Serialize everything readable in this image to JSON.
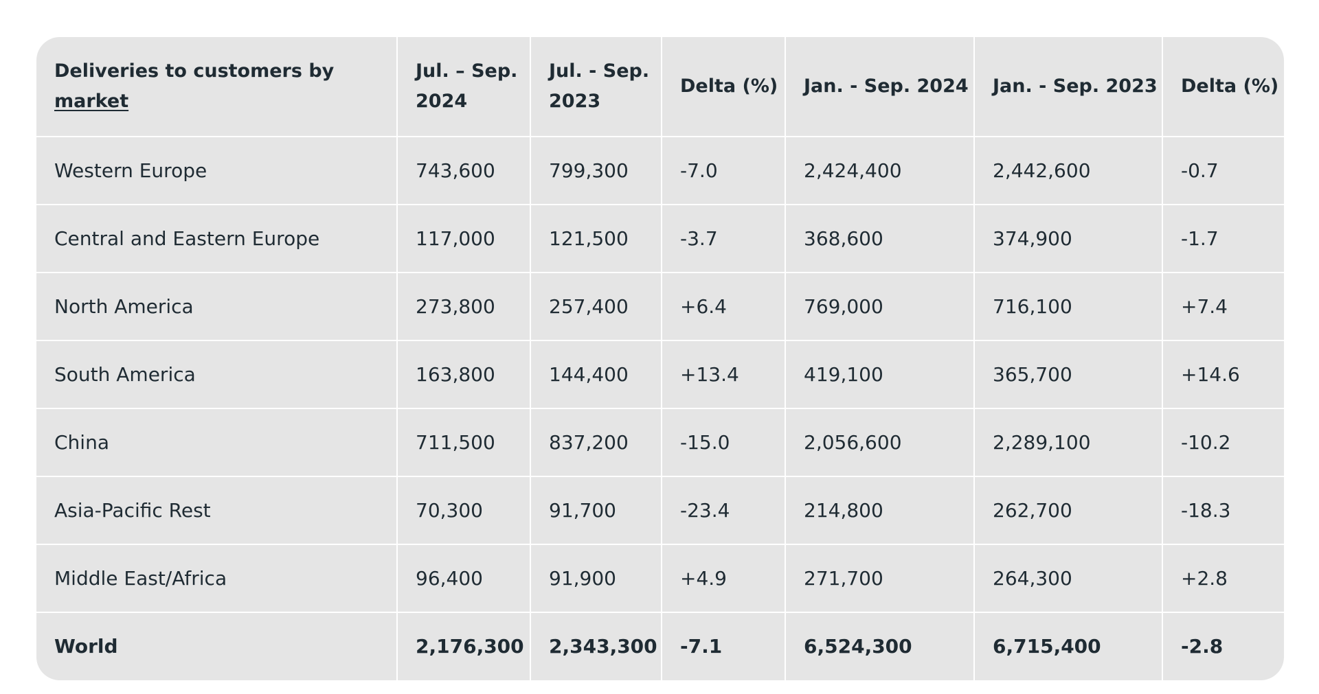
{
  "table": {
    "header": {
      "market_prefix": "Deliveries to customers by",
      "market_link": "market",
      "columns": [
        "Jul. – Sep. 2024",
        "Jul. - Sep. 2023",
        "Delta (%)",
        "Jan. - Sep. 2024",
        "Jan. - Sep. 2023",
        "Delta (%)"
      ]
    },
    "rows": [
      {
        "market": "Western Europe",
        "values": [
          "743,600",
          "799,300",
          "-7.0",
          "2,424,400",
          "2,442,600",
          "-0.7"
        ]
      },
      {
        "market": "Central and Eastern Europe",
        "values": [
          "117,000",
          "121,500",
          "-3.7",
          "368,600",
          "374,900",
          "-1.7"
        ]
      },
      {
        "market": "North America",
        "values": [
          "273,800",
          "257,400",
          "+6.4",
          "769,000",
          "716,100",
          "+7.4"
        ]
      },
      {
        "market": "South America",
        "values": [
          "163,800",
          "144,400",
          "+13.4",
          "419,100",
          "365,700",
          "+14.6"
        ]
      },
      {
        "market": "China",
        "values": [
          "711,500",
          "837,200",
          "-15.0",
          "2,056,600",
          "2,289,100",
          "-10.2"
        ]
      },
      {
        "market": "Asia-Pacific Rest",
        "values": [
          "70,300",
          "91,700",
          "-23.4",
          "214,800",
          "262,700",
          "-18.3"
        ]
      },
      {
        "market": "Middle East/Africa",
        "values": [
          "96,400",
          "91,900",
          "+4.9",
          "271,700",
          "264,300",
          "+2.8"
        ]
      }
    ],
    "total": {
      "market": "World",
      "values": [
        "2,176,300",
        "2,343,300",
        "-7.1",
        "6,524,300",
        "6,715,400",
        "-2.8"
      ]
    }
  }
}
